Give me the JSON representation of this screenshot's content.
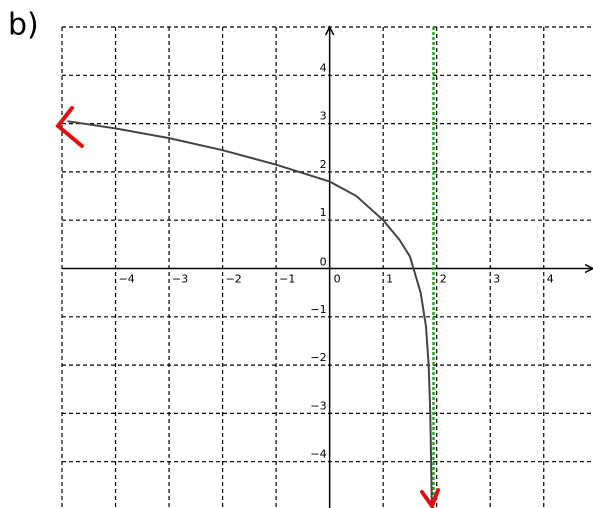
{
  "chart_data": {
    "type": "line",
    "title": "b)",
    "x": [
      -4.9,
      -4,
      -3,
      -2,
      -1,
      0,
      0.5,
      1,
      1.3,
      1.5,
      1.7,
      1.8,
      1.85,
      1.88,
      1.9,
      1.91
    ],
    "series": [
      {
        "color": "#444444",
        "values": [
          3.05,
          2.9,
          2.7,
          2.45,
          2.15,
          1.8,
          1.5,
          1.0,
          0.6,
          0.25,
          -0.5,
          -1.2,
          -2,
          -3,
          -4.3,
          -5
        ]
      }
    ],
    "xlim": [
      -5,
      4.92
    ],
    "ylim": [
      -5,
      5
    ],
    "xticks": [
      {
        "value": -4,
        "label": "−4"
      },
      {
        "value": -3,
        "label": "−3"
      },
      {
        "value": -2,
        "label": "−2"
      },
      {
        "value": -1,
        "label": "−1"
      },
      0,
      1,
      2,
      3,
      4
    ],
    "yticks": [
      {
        "value": -4,
        "label": "−4"
      },
      {
        "value": -3,
        "label": "−3"
      },
      {
        "value": -2,
        "label": "−2"
      },
      {
        "value": -1,
        "label": "−1"
      },
      0,
      1,
      2,
      3,
      4
    ],
    "grid": true,
    "asymptote": {
      "x": 1.94,
      "color": "#22aa22"
    }
  }
}
